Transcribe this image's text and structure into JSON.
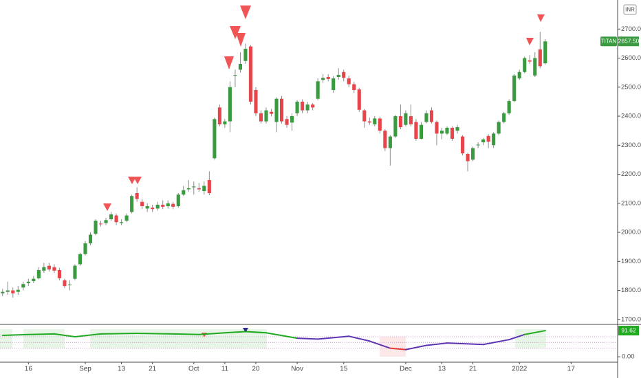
{
  "chart_data": {
    "type": "candlestick",
    "name": "TITAN",
    "currency": "INR",
    "up_color": "#3a9a3f",
    "down_color": "#e8454b",
    "open": [
      1790,
      1795,
      1800,
      1795,
      1810,
      1825,
      1832,
      1842,
      1868,
      1885,
      1880,
      1870,
      1835,
      1818,
      1840,
      1890,
      1925,
      1962,
      1995,
      2030,
      2032,
      2045,
      2058,
      2032,
      2040,
      2070,
      2135,
      2105,
      2082,
      2085,
      2082,
      2095,
      2090,
      2098,
      2090,
      2130,
      2148,
      2155,
      2152,
      2142,
      2180,
      2255,
      2430,
      2372,
      2382,
      2540,
      2560,
      2590,
      2640,
      2490,
      2410,
      2382,
      2415,
      2380,
      2460,
      2390,
      2378,
      2410,
      2450,
      2420,
      2440,
      2460,
      2525,
      2535,
      2490,
      2535,
      2552,
      2530,
      2510,
      2492,
      2420,
      2382,
      2372,
      2392,
      2350,
      2290,
      2330,
      2400,
      2370,
      2400,
      2380,
      2322,
      2380,
      2420,
      2380,
      2340,
      2340,
      2360,
      2350,
      2330,
      2270,
      2250,
      2300,
      2310,
      2332,
      2300,
      2340,
      2380,
      2410,
      2452,
      2530,
      2552,
      2592,
      2540,
      2630,
      2582
    ],
    "high": [
      1805,
      1830,
      1810,
      1815,
      1830,
      1840,
      1850,
      1880,
      1895,
      1895,
      1890,
      1878,
      1840,
      1835,
      1890,
      1930,
      1970,
      2000,
      2045,
      2040,
      2050,
      2070,
      2065,
      2045,
      2065,
      2130,
      2155,
      2115,
      2100,
      2095,
      2105,
      2110,
      2110,
      2105,
      2135,
      2160,
      2180,
      2175,
      2170,
      2175,
      2210,
      2395,
      2440,
      2390,
      2520,
      2560,
      2620,
      2650,
      2645,
      2500,
      2420,
      2430,
      2425,
      2465,
      2470,
      2400,
      2410,
      2455,
      2458,
      2450,
      2445,
      2530,
      2545,
      2545,
      2538,
      2565,
      2560,
      2540,
      2518,
      2498,
      2425,
      2395,
      2400,
      2398,
      2355,
      2335,
      2405,
      2440,
      2420,
      2440,
      2390,
      2380,
      2420,
      2430,
      2385,
      2360,
      2365,
      2365,
      2370,
      2335,
      2275,
      2295,
      2310,
      2325,
      2338,
      2345,
      2385,
      2415,
      2458,
      2545,
      2560,
      2605,
      2610,
      2620,
      2690,
      2665
    ],
    "low": [
      1780,
      1785,
      1775,
      1785,
      1800,
      1815,
      1825,
      1838,
      1860,
      1865,
      1860,
      1835,
      1808,
      1800,
      1835,
      1885,
      1920,
      1955,
      1990,
      2020,
      2025,
      2040,
      2025,
      2025,
      2035,
      2065,
      2105,
      2080,
      2070,
      2070,
      2075,
      2080,
      2082,
      2080,
      2085,
      2125,
      2140,
      2130,
      2140,
      2130,
      2128,
      2250,
      2365,
      2360,
      2345,
      2500,
      2550,
      2580,
      2440,
      2400,
      2375,
      2375,
      2400,
      2345,
      2375,
      2360,
      2350,
      2400,
      2410,
      2410,
      2420,
      2455,
      2515,
      2520,
      2480,
      2525,
      2520,
      2500,
      2480,
      2415,
      2360,
      2370,
      2365,
      2340,
      2280,
      2230,
      2325,
      2355,
      2365,
      2365,
      2315,
      2320,
      2375,
      2375,
      2300,
      2320,
      2335,
      2315,
      2340,
      2265,
      2210,
      2245,
      2290,
      2300,
      2290,
      2290,
      2335,
      2375,
      2405,
      2448,
      2525,
      2548,
      2580,
      2535,
      2565,
      2578
    ],
    "close": [
      1795,
      1800,
      1790,
      1802,
      1822,
      1830,
      1840,
      1870,
      1880,
      1872,
      1868,
      1842,
      1815,
      1820,
      1885,
      1925,
      1962,
      1992,
      2040,
      2028,
      2042,
      2062,
      2035,
      2035,
      2058,
      2125,
      2115,
      2090,
      2090,
      2080,
      2095,
      2088,
      2100,
      2088,
      2130,
      2145,
      2152,
      2158,
      2148,
      2160,
      2135,
      2390,
      2372,
      2382,
      2500,
      2542,
      2580,
      2632,
      2450,
      2410,
      2382,
      2420,
      2408,
      2460,
      2382,
      2370,
      2400,
      2450,
      2420,
      2440,
      2430,
      2520,
      2532,
      2528,
      2530,
      2542,
      2532,
      2510,
      2490,
      2422,
      2382,
      2378,
      2392,
      2350,
      2290,
      2330,
      2400,
      2362,
      2410,
      2372,
      2322,
      2370,
      2410,
      2380,
      2340,
      2350,
      2360,
      2322,
      2362,
      2272,
      2245,
      2290,
      2302,
      2320,
      2312,
      2340,
      2380,
      2410,
      2452,
      2540,
      2552,
      2600,
      2588,
      2600,
      2572,
      2657.5
    ],
    "last_label": "2657.50",
    "xlim": [
      -0.5,
      119
    ],
    "xticks": [
      {
        "value": 5,
        "label": "16"
      },
      {
        "value": 16,
        "label": "Sep"
      },
      {
        "value": 23,
        "label": "13"
      },
      {
        "value": 29,
        "label": "21"
      },
      {
        "value": 37,
        "label": "Oct"
      },
      {
        "value": 43,
        "label": "11"
      },
      {
        "value": 49,
        "label": "20"
      },
      {
        "value": 57,
        "label": "Nov"
      },
      {
        "value": 66,
        "label": "15"
      },
      {
        "value": 78,
        "label": "Dec"
      },
      {
        "value": 85,
        "label": "13"
      },
      {
        "value": 91,
        "label": "21"
      },
      {
        "value": 100,
        "label": "2022"
      },
      {
        "value": 110,
        "label": "17"
      }
    ],
    "ylim": [
      1683,
      2800
    ],
    "yticks": [
      {
        "value": 1700,
        "label": "1700.00"
      },
      {
        "value": 1800,
        "label": "1800.00"
      },
      {
        "value": 1900,
        "label": "1900.00"
      },
      {
        "value": 2000,
        "label": "2000.00"
      },
      {
        "value": 2100,
        "label": "2100.00"
      },
      {
        "value": 2200,
        "label": "2200.00"
      },
      {
        "value": 2300,
        "label": "2300.00"
      },
      {
        "value": 2400,
        "label": "2400.00"
      },
      {
        "value": 2500,
        "label": "2500.00"
      },
      {
        "value": 2600,
        "label": "2600.00"
      },
      {
        "value": 2700,
        "label": "2700.00"
      }
    ],
    "oscillator": {
      "type": "line",
      "x": [
        0,
        5,
        10,
        14,
        16,
        19,
        26,
        33,
        38,
        43,
        47,
        51,
        57,
        61,
        67,
        71,
        75,
        78,
        82,
        86,
        93,
        98,
        101,
        105
      ],
      "values": [
        75,
        78,
        80,
        70,
        74,
        80,
        82,
        80,
        78,
        84,
        88,
        84,
        65,
        62,
        72,
        55,
        30,
        25,
        40,
        48,
        43,
        60,
        78,
        91.62
      ],
      "high_color": "#1faa1f",
      "mid_color": "#5e35b1",
      "low_color": "#e53935",
      "levels": [
        30,
        50,
        70
      ],
      "ylim": [
        -19,
        111
      ],
      "yticks": [
        {
          "value": 0,
          "label": "0.00"
        }
      ],
      "last_label": "91.62"
    }
  }
}
